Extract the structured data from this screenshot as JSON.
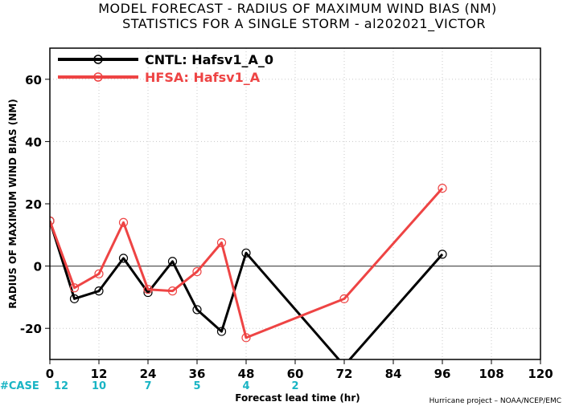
{
  "chart_data": {
    "type": "line",
    "title": "MODEL FORECAST - RADIUS OF MAXIMUM WIND BIAS (NM)",
    "subtitle": "STATISTICS FOR A SINGLE STORM - al202021_VICTOR",
    "xlabel": "Forecast lead time (hr)",
    "ylabel": "RADIUS OF MAXIMUM WIND BIAS (NM)",
    "xlim": [
      0,
      120
    ],
    "ylim": [
      -30,
      70
    ],
    "xticks": [
      0,
      12,
      24,
      36,
      48,
      60,
      72,
      84,
      96,
      108,
      120
    ],
    "yticks": [
      -20,
      0,
      20,
      40,
      60
    ],
    "grid": true,
    "legend_position": "top-left",
    "series": [
      {
        "name": "CNTL: Hafsv1_A_0",
        "color": "#000000",
        "points": [
          [
            0,
            14.5
          ],
          [
            6,
            -10.5
          ],
          [
            12,
            -8
          ],
          [
            18,
            2.5
          ],
          [
            24,
            -8.5
          ],
          [
            30,
            1.5
          ],
          [
            36,
            -14
          ],
          [
            42,
            -21
          ],
          [
            48,
            4.2
          ],
          [
            72,
            -32
          ],
          [
            96,
            3.8
          ]
        ]
      },
      {
        "name": "HFSA: Hafsv1_A",
        "color": "#ee4444",
        "points": [
          [
            0,
            14.5
          ],
          [
            6,
            -7
          ],
          [
            12,
            -2.5
          ],
          [
            18,
            14
          ],
          [
            24,
            -7.5
          ],
          [
            30,
            -8
          ],
          [
            36,
            -1.8
          ],
          [
            42,
            7.5
          ],
          [
            48,
            -23
          ],
          [
            72,
            -10.5
          ],
          [
            96,
            25
          ]
        ]
      }
    ],
    "case_label": "#CASE",
    "case_counts": [
      {
        "x": 0,
        "count": "12"
      },
      {
        "x": 12,
        "count": "10"
      },
      {
        "x": 24,
        "count": "7"
      },
      {
        "x": 36,
        "count": "5"
      },
      {
        "x": 48,
        "count": "4"
      },
      {
        "x": 60,
        "count": "2"
      }
    ]
  },
  "credit": "Hurricane project – NOAA/NCEP/EMC"
}
